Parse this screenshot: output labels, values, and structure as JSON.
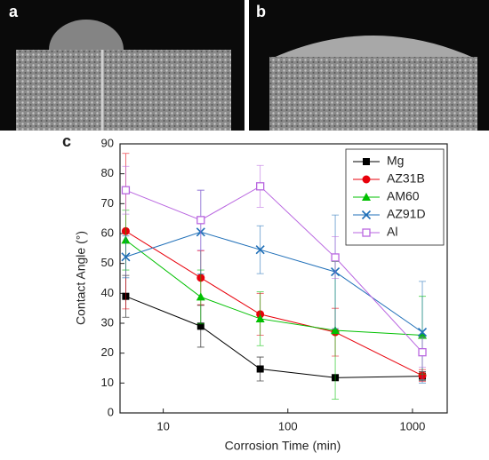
{
  "panels": [
    "a",
    "b",
    "c"
  ],
  "chart_data": {
    "type": "line",
    "xlabel": "Corrosion Time (min)",
    "ylabel": "Contact Angle (°)",
    "x": [
      5,
      20,
      60,
      240,
      1200
    ],
    "xscale": "log",
    "xlim": [
      4.5,
      1900
    ],
    "xticks": [
      10,
      100,
      1000
    ],
    "ylim": [
      0,
      90
    ],
    "yticks": [
      0,
      10,
      20,
      30,
      40,
      50,
      60,
      70,
      80,
      90
    ],
    "legend": "upper right",
    "series": [
      {
        "name": "Mg",
        "color": "#000000",
        "marker": "square",
        "values": [
          39,
          29,
          14.7,
          11.8,
          12.3
        ],
        "errors": [
          7,
          7,
          4,
          0.5,
          1.5
        ]
      },
      {
        "name": "AZ31B",
        "color": "#e8000b",
        "marker": "circle",
        "values": [
          60.8,
          45.2,
          33,
          27,
          12.5
        ],
        "errors": [
          26,
          9,
          7,
          8,
          2
        ]
      },
      {
        "name": "AM60",
        "color": "#00c000",
        "marker": "triangle",
        "values": [
          57.8,
          38.8,
          31.5,
          27.6,
          26
        ],
        "errors": [
          10,
          9,
          9,
          23,
          13
        ]
      },
      {
        "name": "AZ91D",
        "color": "#1f6fb8",
        "marker": "x",
        "values": [
          52.2,
          60.5,
          54.6,
          47.2,
          27
        ],
        "errors": [
          7,
          14,
          8,
          19,
          17
        ]
      },
      {
        "name": "Al",
        "color": "#b966e0",
        "marker": "open-square",
        "values": [
          74.5,
          64.5,
          75.8,
          52,
          20.3
        ],
        "errors": [
          8,
          10,
          7,
          7,
          5
        ]
      }
    ]
  }
}
